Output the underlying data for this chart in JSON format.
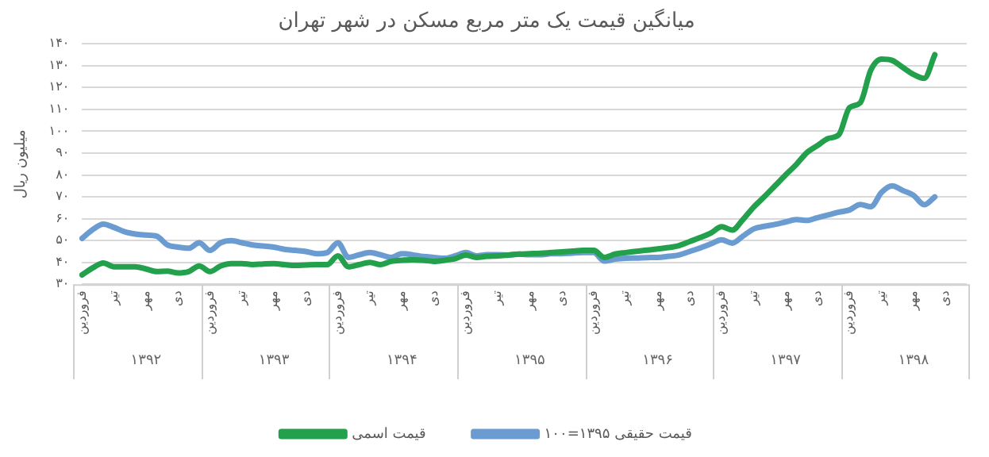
{
  "chart_data": {
    "type": "line",
    "title": "میانگین قیمت یک متر مربع مسکن در شهر تهران",
    "ylabel": "میلیون ریال",
    "categories": [
      "فروردین",
      null,
      null,
      "تیر",
      null,
      null,
      "مهر",
      null,
      null,
      "دی",
      null,
      null,
      "فروردین",
      null,
      null,
      "تیر",
      null,
      null,
      "مهر",
      null,
      null,
      "دی",
      null,
      null,
      "فروردین",
      null,
      null,
      "تیر",
      null,
      null,
      "مهر",
      null,
      null,
      "دی",
      null,
      null,
      "فروردین",
      null,
      null,
      "تیر",
      null,
      null,
      "مهر",
      null,
      null,
      "دی",
      null,
      null,
      "فروردین",
      null,
      null,
      "تیر",
      null,
      null,
      "مهر",
      null,
      null,
      "دی",
      null,
      null,
      "فروردین",
      null,
      null,
      "تیر",
      null,
      null,
      "مهر",
      null,
      null,
      "دی",
      null,
      null,
      "فروردین",
      null,
      null,
      "تیر",
      null,
      null,
      "مهر",
      null,
      null,
      "دی",
      null,
      null
    ],
    "annotations": [
      "۱۳۹۲",
      "۱۳۹۳",
      "۱۳۹۴",
      "۱۳۹۵",
      "۱۳۹۶",
      "۱۳۹۷",
      "۱۳۹۸"
    ],
    "series": [
      {
        "name": "قیمت اسمی",
        "color": "#22a04b",
        "values": [
          34.3,
          37.5,
          39.7,
          38,
          38,
          38,
          37,
          35.8,
          36,
          35.2,
          35.8,
          38.4,
          35.8,
          38.4,
          39.5,
          39.5,
          39,
          39.3,
          39.5,
          39,
          38.6,
          38.8,
          39,
          39,
          43,
          38,
          39,
          40,
          39,
          40.5,
          41,
          41.2,
          41,
          40.5,
          41,
          41.7,
          43.4,
          42.3,
          42.8,
          43,
          43.4,
          43.8,
          44,
          44.2,
          44.5,
          44.8,
          45.2,
          45.5,
          45.5,
          42.3,
          43.8,
          44.5,
          45.1,
          45.6,
          46.2,
          46.8,
          47.7,
          49.5,
          51.4,
          53.5,
          56.3,
          54.8,
          59.6,
          65.3,
          70,
          75,
          80,
          84.8,
          90.2,
          93.5,
          96.7,
          98.4,
          110.8,
          113,
          128,
          133,
          132.4,
          129.2,
          126,
          124.2,
          135,
          null,
          null,
          null
        ]
      },
      {
        "name": "قیمت حقیقی ۱۳۹۵=۱۰۰",
        "color": "#6a9bd1",
        "values": [
          51,
          55,
          57.5,
          56,
          54,
          53,
          52.5,
          52,
          48,
          47,
          46.5,
          49,
          45.5,
          49,
          50,
          49,
          48,
          47.5,
          47,
          46,
          45.5,
          45,
          44,
          44.5,
          49,
          42.3,
          43.5,
          44.5,
          43.5,
          42.3,
          44,
          43.5,
          42.7,
          42.3,
          41.9,
          43,
          44.5,
          43,
          43.5,
          43.5,
          43.4,
          43.8,
          43.5,
          43.5,
          44,
          44,
          44.3,
          44.5,
          44.5,
          40.6,
          41.5,
          41.9,
          42,
          42.2,
          42.3,
          42.8,
          43.4,
          45,
          46.6,
          48.5,
          50.3,
          48.8,
          52,
          55.3,
          56.5,
          57.4,
          58.5,
          59.6,
          59.2,
          60.5,
          61.7,
          63,
          64,
          66.5,
          65.5,
          72,
          75,
          72.9,
          70.7,
          66.4,
          70,
          null,
          null,
          null
        ]
      }
    ],
    "ylim": [
      30,
      140
    ],
    "yticks": [
      {
        "value": 30,
        "label": "۳۰"
      },
      {
        "value": 40,
        "label": "۴۰"
      },
      {
        "value": 50,
        "label": "۵۰"
      },
      {
        "value": 60,
        "label": "۶۰"
      },
      {
        "value": 70,
        "label": "۷۰"
      },
      {
        "value": 80,
        "label": "۸۰"
      },
      {
        "value": 90,
        "label": "۹۰"
      },
      {
        "value": 100,
        "label": "۱۰۰"
      },
      {
        "value": 110,
        "label": "۱۱۰"
      },
      {
        "value": 120,
        "label": "۱۲۰"
      },
      {
        "value": 130,
        "label": "۱۳۰"
      },
      {
        "value": 140,
        "label": "۱۴۰"
      }
    ],
    "grid": "y",
    "legend": "bottom",
    "marker": "none",
    "line_style": "solid"
  }
}
